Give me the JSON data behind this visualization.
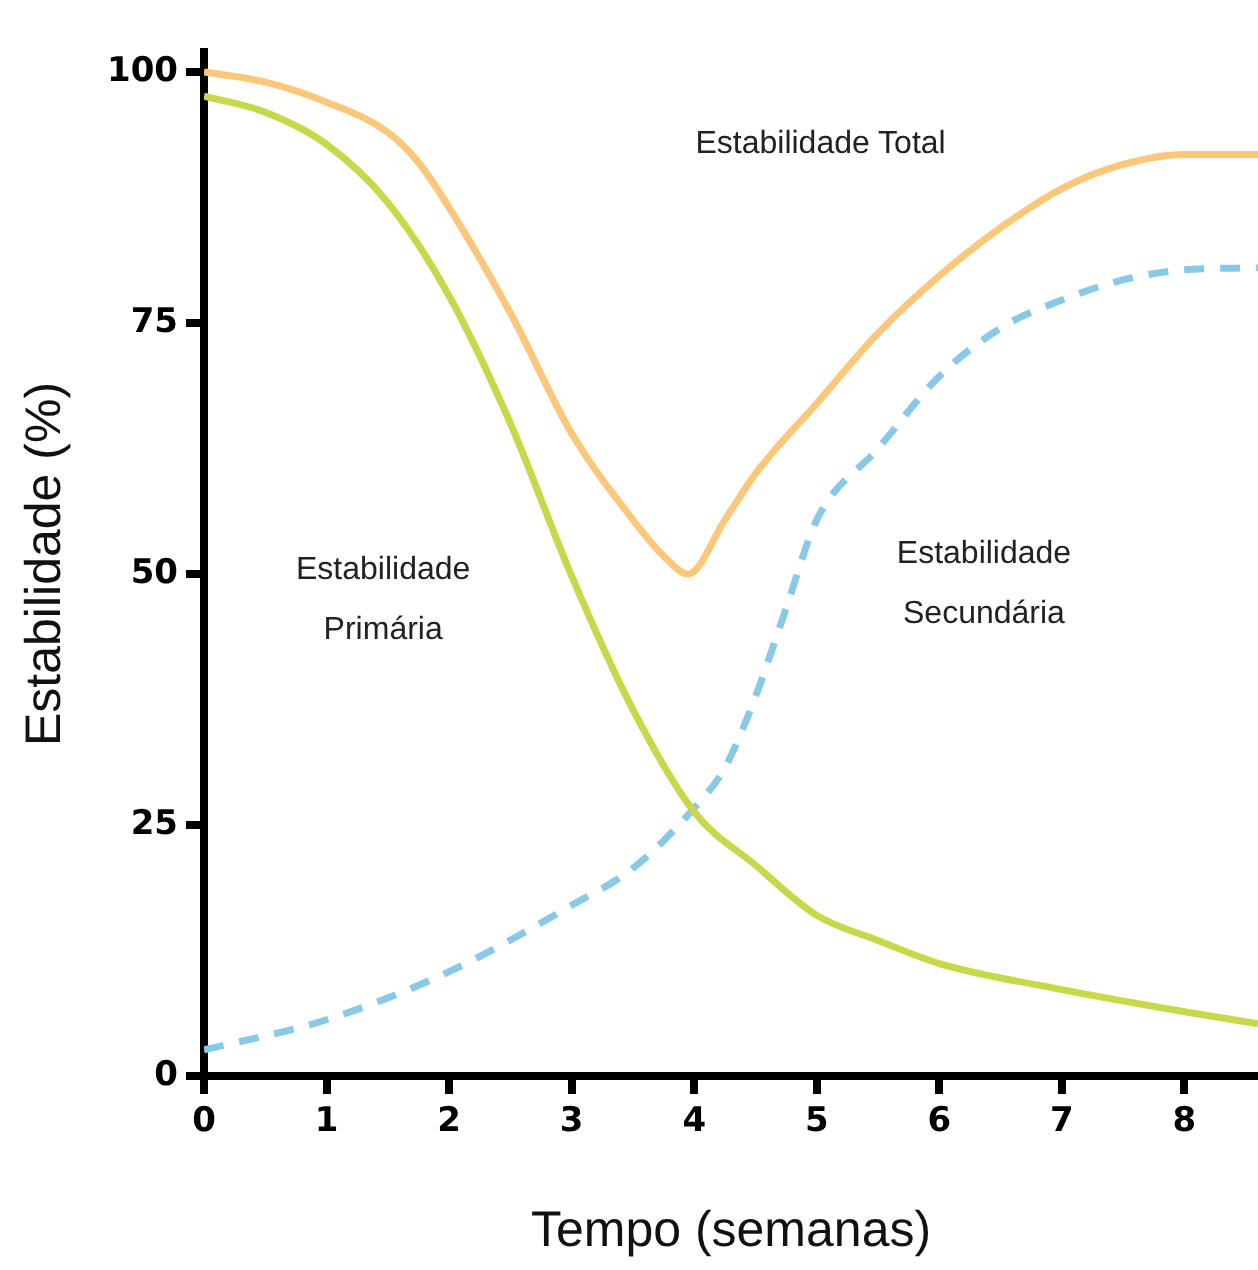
{
  "chart_data": {
    "type": "line",
    "xlabel": "Tempo (semanas)",
    "ylabel": "Estabilidade (%)",
    "xlim": [
      0,
      8.6
    ],
    "ylim": [
      0,
      102
    ],
    "xticks": [
      0,
      1,
      2,
      3,
      4,
      5,
      6,
      7,
      8
    ],
    "yticks": [
      0,
      25,
      50,
      75,
      100
    ],
    "grid": false,
    "legend": false,
    "marker": "none",
    "line_style": "solid",
    "series": [
      {
        "name": "Estabilidade Total",
        "color": "#fbc77a",
        "x": [
          0,
          0.5,
          1,
          1.5,
          1.75,
          2,
          2.5,
          3,
          3.5,
          3.75,
          3.95,
          4.25,
          4.5,
          5,
          5.5,
          6,
          6.5,
          7,
          7.5,
          8,
          8.6
        ],
        "values": [
          100,
          99,
          97,
          94,
          91,
          86.5,
          76,
          64,
          55.4,
          51.8,
          50,
          55.4,
          60,
          67,
          74,
          79.7,
          84.5,
          88.4,
          90.8,
          91.8,
          91.8
        ]
      },
      {
        "name": "Estabilidade Primária",
        "color": "#c8d84a",
        "x": [
          0,
          0.5,
          1,
          1.5,
          2,
          2.5,
          3,
          3.5,
          4,
          4.5,
          5,
          5.5,
          6,
          7,
          8,
          8.6
        ],
        "values": [
          97.6,
          96,
          92.8,
          87,
          77.7,
          65,
          49.8,
          36.5,
          26.3,
          21,
          16,
          13.5,
          11.2,
          8.6,
          6.4,
          5.2
        ]
      },
      {
        "name": "Estabilidade Secundária",
        "color": "#89c9e8",
        "line_style": "dashed",
        "x": [
          0,
          1,
          2,
          3,
          3.5,
          4,
          4.25,
          4.5,
          4.75,
          5,
          5.5,
          6,
          6.5,
          7,
          7.5,
          8,
          8.6
        ],
        "values": [
          2.6,
          5.6,
          10.4,
          17,
          20.7,
          26.7,
          30.7,
          37.8,
          46.6,
          55.4,
          62.5,
          69.7,
          74.5,
          77.3,
          79.3,
          80.3,
          80.5
        ]
      }
    ]
  }
}
